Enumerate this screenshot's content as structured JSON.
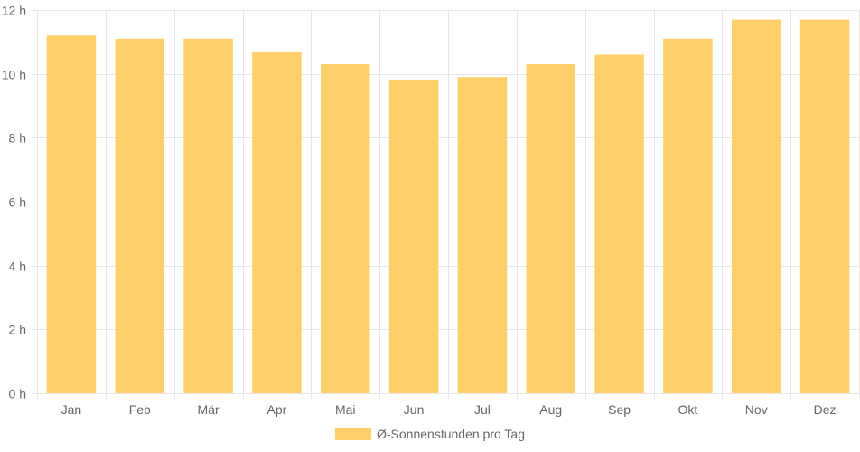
{
  "chart_data": {
    "type": "bar",
    "categories": [
      "Jan",
      "Feb",
      "Mär",
      "Apr",
      "Mai",
      "Jun",
      "Jul",
      "Aug",
      "Sep",
      "Okt",
      "Nov",
      "Dez"
    ],
    "series": [
      {
        "name": "Ø-Sonnenstunden pro Tag",
        "values": [
          11.2,
          11.1,
          11.1,
          10.7,
          10.3,
          9.8,
          9.9,
          10.3,
          10.6,
          11.1,
          11.7,
          11.7
        ],
        "color": "#fdd069"
      }
    ],
    "yticks": [
      "0 h",
      "2 h",
      "4 h",
      "6 h",
      "8 h",
      "10 h",
      "12 h"
    ],
    "ylim": [
      0,
      12
    ],
    "grid": true,
    "legend_position": "bottom-center"
  },
  "colors": {
    "bar": "#fdd069",
    "grid": "#e6e6e6",
    "text": "#666666"
  }
}
